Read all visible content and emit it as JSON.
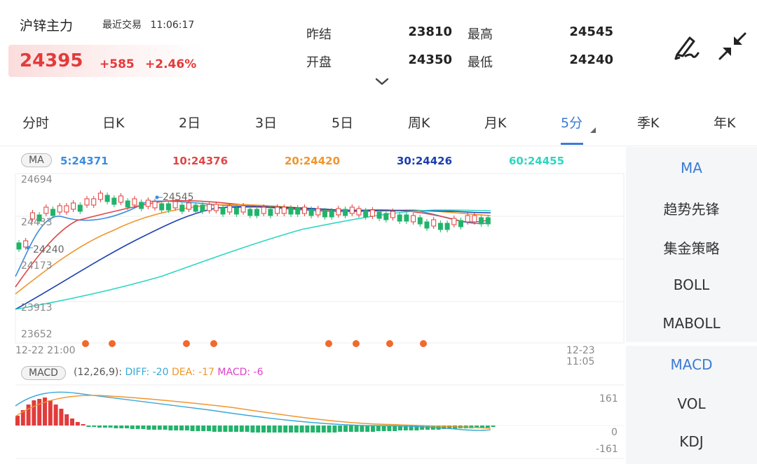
{
  "header": {
    "symbol_name": "沪锌主力",
    "recent_label": "最近交易",
    "recent_time": "11:06:17",
    "last_price": "24395",
    "change": "+585",
    "change_pct": "+2.46%",
    "quotes": [
      {
        "label": "昨结",
        "value": "23810"
      },
      {
        "label": "最高",
        "value": "24545"
      },
      {
        "label": "开盘",
        "value": "24350"
      },
      {
        "label": "最低",
        "value": "24240"
      }
    ],
    "icons": [
      "draw-icon",
      "collapse-icon",
      "chevron-down-icon"
    ]
  },
  "tabs": [
    {
      "label": "分时"
    },
    {
      "label": "日K"
    },
    {
      "label": "2日"
    },
    {
      "label": "3日"
    },
    {
      "label": "5日"
    },
    {
      "label": "周K"
    },
    {
      "label": "月K"
    },
    {
      "label": "5分",
      "active": true
    },
    {
      "label": "季K"
    },
    {
      "label": "年K"
    }
  ],
  "main_chart": {
    "indicator": "MA",
    "ma_values": [
      {
        "label": "5:24371",
        "color": "#3a8de0"
      },
      {
        "label": "10:24376",
        "color": "#e04646"
      },
      {
        "label": "20:24420",
        "color": "#f0962d"
      },
      {
        "label": "30:24426",
        "color": "#1c3fae"
      },
      {
        "label": "60:24455",
        "color": "#2ed6c2"
      }
    ],
    "y_labels": [
      "24694",
      "24433",
      "24173",
      "23913",
      "23652"
    ],
    "high_marker": "24545",
    "low_marker": "24240",
    "x_start": "12-22 21:00",
    "x_end": "12-23 11:05",
    "up_color": "#e23b3b",
    "down_color": "#22b36b",
    "signal_dot_color": "#f06a2c"
  },
  "macd": {
    "badge": "MACD",
    "params": "(12,26,9):",
    "diff": "DIFF: -20",
    "dea": "DEA: -17",
    "macd": "MACD: -6",
    "diff_color": "#38a8d8",
    "dea_color": "#f0962d",
    "macd_color": "#e040c8",
    "y_labels": [
      "161",
      "0",
      "-161"
    ]
  },
  "right_panel": {
    "main_indicators": [
      {
        "label": "MA",
        "active": true
      },
      {
        "label": "趋势先锋"
      },
      {
        "label": "集金策略"
      },
      {
        "label": "BOLL"
      },
      {
        "label": "MABOLL"
      }
    ],
    "sub_indicators": [
      {
        "label": "MACD",
        "active": true
      },
      {
        "label": "VOL"
      },
      {
        "label": "KDJ"
      }
    ]
  }
}
